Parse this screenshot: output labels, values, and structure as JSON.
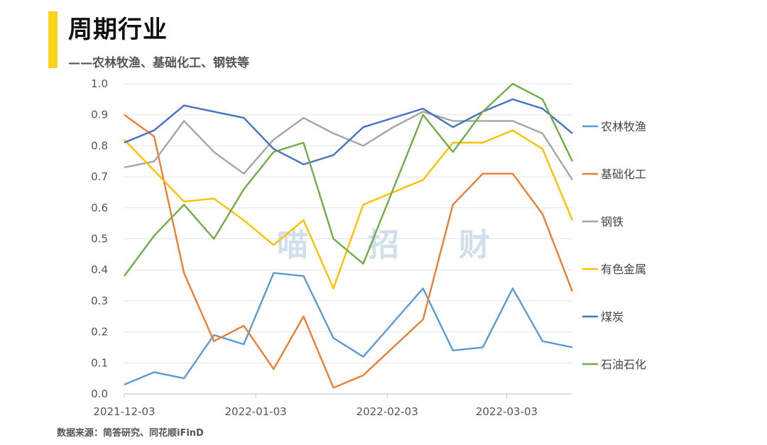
{
  "header": {
    "title": "周期行业",
    "subtitle": "——农林牧渔、基础化工、钢铁等"
  },
  "footer": {
    "source": "数据来源：简答研究、同花顺iFinD"
  },
  "watermark": [
    "喵",
    "招",
    "财"
  ],
  "colors": {
    "accent": "#FFD21E"
  },
  "chart_data": {
    "type": "line",
    "x": [
      0,
      1,
      2,
      3,
      4,
      5,
      6,
      7,
      8,
      9,
      10,
      11,
      12,
      13,
      14,
      15
    ],
    "x_tick_labels": [
      {
        "pos": 0,
        "label": "2021-12-03"
      },
      {
        "pos": 4.4,
        "label": "2022-01-03"
      },
      {
        "pos": 8.8,
        "label": "2022-02-03"
      },
      {
        "pos": 12.8,
        "label": "2022-03-03"
      }
    ],
    "ylim": [
      0,
      1.0
    ],
    "yticks": [
      "0.0",
      "0.1",
      "0.2",
      "0.3",
      "0.4",
      "0.5",
      "0.6",
      "0.7",
      "0.8",
      "0.9",
      "1.0"
    ],
    "grid": true,
    "legend_position": "right",
    "series": [
      {
        "name": "农林牧渔",
        "color": "#5B9BD5",
        "values": [
          0.03,
          0.07,
          0.05,
          0.19,
          0.16,
          0.39,
          0.38,
          0.18,
          0.12,
          0.23,
          0.34,
          0.14,
          0.15,
          0.34,
          0.17,
          0.15
        ]
      },
      {
        "name": "基础化工",
        "color": "#ED7D31",
        "values": [
          0.9,
          0.83,
          0.39,
          0.17,
          0.22,
          0.08,
          0.25,
          0.02,
          0.06,
          0.15,
          0.24,
          0.61,
          0.71,
          0.71,
          0.58,
          0.33
        ]
      },
      {
        "name": "钢铁",
        "color": "#A5A5A5",
        "values": [
          0.73,
          0.75,
          0.88,
          0.78,
          0.71,
          0.82,
          0.89,
          0.84,
          0.8,
          0.86,
          0.91,
          0.88,
          0.88,
          0.88,
          0.84,
          0.69
        ]
      },
      {
        "name": "有色金属",
        "color": "#FFC000",
        "values": [
          0.82,
          0.72,
          0.62,
          0.63,
          0.56,
          0.48,
          0.56,
          0.34,
          0.61,
          0.65,
          0.69,
          0.81,
          0.81,
          0.85,
          0.79,
          0.56
        ]
      },
      {
        "name": "煤炭",
        "color": "#4472C4",
        "values": [
          0.81,
          0.85,
          0.93,
          0.91,
          0.89,
          0.79,
          0.74,
          0.77,
          0.86,
          0.89,
          0.92,
          0.86,
          0.91,
          0.95,
          0.92,
          0.84
        ]
      },
      {
        "name": "石油石化",
        "color": "#70AD47",
        "values": [
          0.38,
          0.51,
          0.61,
          0.5,
          0.66,
          0.78,
          0.81,
          0.5,
          0.42,
          0.66,
          0.9,
          0.78,
          0.91,
          1.0,
          0.95,
          0.75
        ]
      }
    ]
  }
}
